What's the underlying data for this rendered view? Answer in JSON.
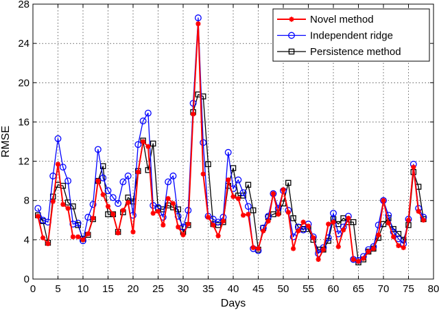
{
  "chart_data": {
    "type": "line",
    "title": "",
    "xlabel": "Days",
    "ylabel": "RMSE",
    "xlim": [
      0,
      80
    ],
    "ylim": [
      0,
      28
    ],
    "xticks": [
      0,
      5,
      10,
      15,
      20,
      25,
      30,
      35,
      40,
      45,
      50,
      55,
      60,
      65,
      70,
      75,
      80
    ],
    "yticks": [
      0,
      4,
      8,
      12,
      16,
      20,
      24,
      28
    ],
    "grid": true,
    "legend_position": "top-right",
    "x": [
      1,
      2,
      3,
      4,
      5,
      6,
      7,
      8,
      9,
      10,
      11,
      12,
      13,
      14,
      15,
      16,
      17,
      18,
      19,
      20,
      21,
      22,
      23,
      24,
      25,
      26,
      27,
      28,
      29,
      30,
      31,
      32,
      33,
      34,
      35,
      36,
      37,
      38,
      39,
      40,
      41,
      42,
      43,
      44,
      45,
      46,
      47,
      48,
      49,
      50,
      51,
      52,
      53,
      54,
      55,
      56,
      57,
      58,
      59,
      60,
      61,
      62,
      63,
      64,
      65,
      66,
      67,
      68,
      69,
      70,
      71,
      72,
      73,
      74,
      75,
      76,
      77,
      78
    ],
    "series": [
      {
        "name": "Novel method",
        "color": "#ff0000",
        "marker": "asterisk",
        "values": [
          6.4,
          4.2,
          3.6,
          7.9,
          11.7,
          7.6,
          7.2,
          4.3,
          4.3,
          4.0,
          4.6,
          6.2,
          10.0,
          8.6,
          7.4,
          6.6,
          4.7,
          7.0,
          7.8,
          4.8,
          10.9,
          14.0,
          13.5,
          6.7,
          6.9,
          5.5,
          8.2,
          7.7,
          5.3,
          4.5,
          5.6,
          16.8,
          26.0,
          10.7,
          6.3,
          5.5,
          4.4,
          5.9,
          10.1,
          8.4,
          8.2,
          6.5,
          6.6,
          3.2,
          3.1,
          4.9,
          5.9,
          8.7,
          6.6,
          9.1,
          6.8,
          3.1,
          4.9,
          5.8,
          5.4,
          4.2,
          2.0,
          3.0,
          5.6,
          5.8,
          3.3,
          5.0,
          6.2,
          2.0,
          1.8,
          2.1,
          2.8,
          3.1,
          4.5,
          8.0,
          5.7,
          4.3,
          3.4,
          3.2,
          6.0,
          11.4,
          6.9,
          6.0
        ]
      },
      {
        "name": "Independent ridge",
        "color": "#0000ff",
        "marker": "circle",
        "values": [
          7.2,
          6.0,
          5.8,
          10.5,
          14.3,
          11.4,
          10.0,
          5.6,
          5.7,
          3.9,
          6.3,
          7.6,
          13.2,
          10.3,
          9.0,
          8.3,
          7.7,
          9.9,
          10.5,
          6.5,
          13.7,
          16.1,
          16.9,
          7.5,
          7.3,
          6.3,
          9.9,
          10.5,
          6.4,
          5.3,
          7.0,
          17.9,
          26.6,
          13.9,
          6.4,
          6.1,
          5.8,
          6.3,
          12.9,
          9.2,
          10.1,
          8.8,
          7.4,
          3.1,
          2.9,
          5.2,
          6.4,
          8.7,
          7.2,
          9.0,
          7.0,
          4.3,
          5.3,
          5.0,
          5.6,
          4.3,
          2.6,
          3.2,
          4.2,
          6.7,
          4.6,
          5.3,
          6.4,
          2.0,
          1.9,
          2.3,
          3.0,
          3.3,
          5.5,
          8.0,
          6.5,
          4.8,
          4.1,
          3.6,
          6.1,
          11.7,
          7.2,
          6.3
        ]
      },
      {
        "name": "Persistence method",
        "color": "#000000",
        "marker": "square",
        "values": [
          6.5,
          5.9,
          3.7,
          8.4,
          9.6,
          9.5,
          7.8,
          7.4,
          5.5,
          4.1,
          4.5,
          6.1,
          10.0,
          11.5,
          6.6,
          6.6,
          4.8,
          6.8,
          8.3,
          7.9,
          11.0,
          14.1,
          11.1,
          13.8,
          7.2,
          7.1,
          7.5,
          7.3,
          7.1,
          4.8,
          5.5,
          17.0,
          18.8,
          18.6,
          11.7,
          5.6,
          5.5,
          5.8,
          9.5,
          11.3,
          8.5,
          8.5,
          9.6,
          7.0,
          3.0,
          5.2,
          6.3,
          6.6,
          6.8,
          7.7,
          9.8,
          6.2,
          5.3,
          5.1,
          5.1,
          4.0,
          3.0,
          3.0,
          3.9,
          6.1,
          5.6,
          6.2,
          5.8,
          5.8,
          1.7,
          2.0,
          2.8,
          3.1,
          4.2,
          5.6,
          6.2,
          5.1,
          4.6,
          4.0,
          5.5,
          10.9,
          9.4,
          6.1
        ]
      }
    ]
  }
}
